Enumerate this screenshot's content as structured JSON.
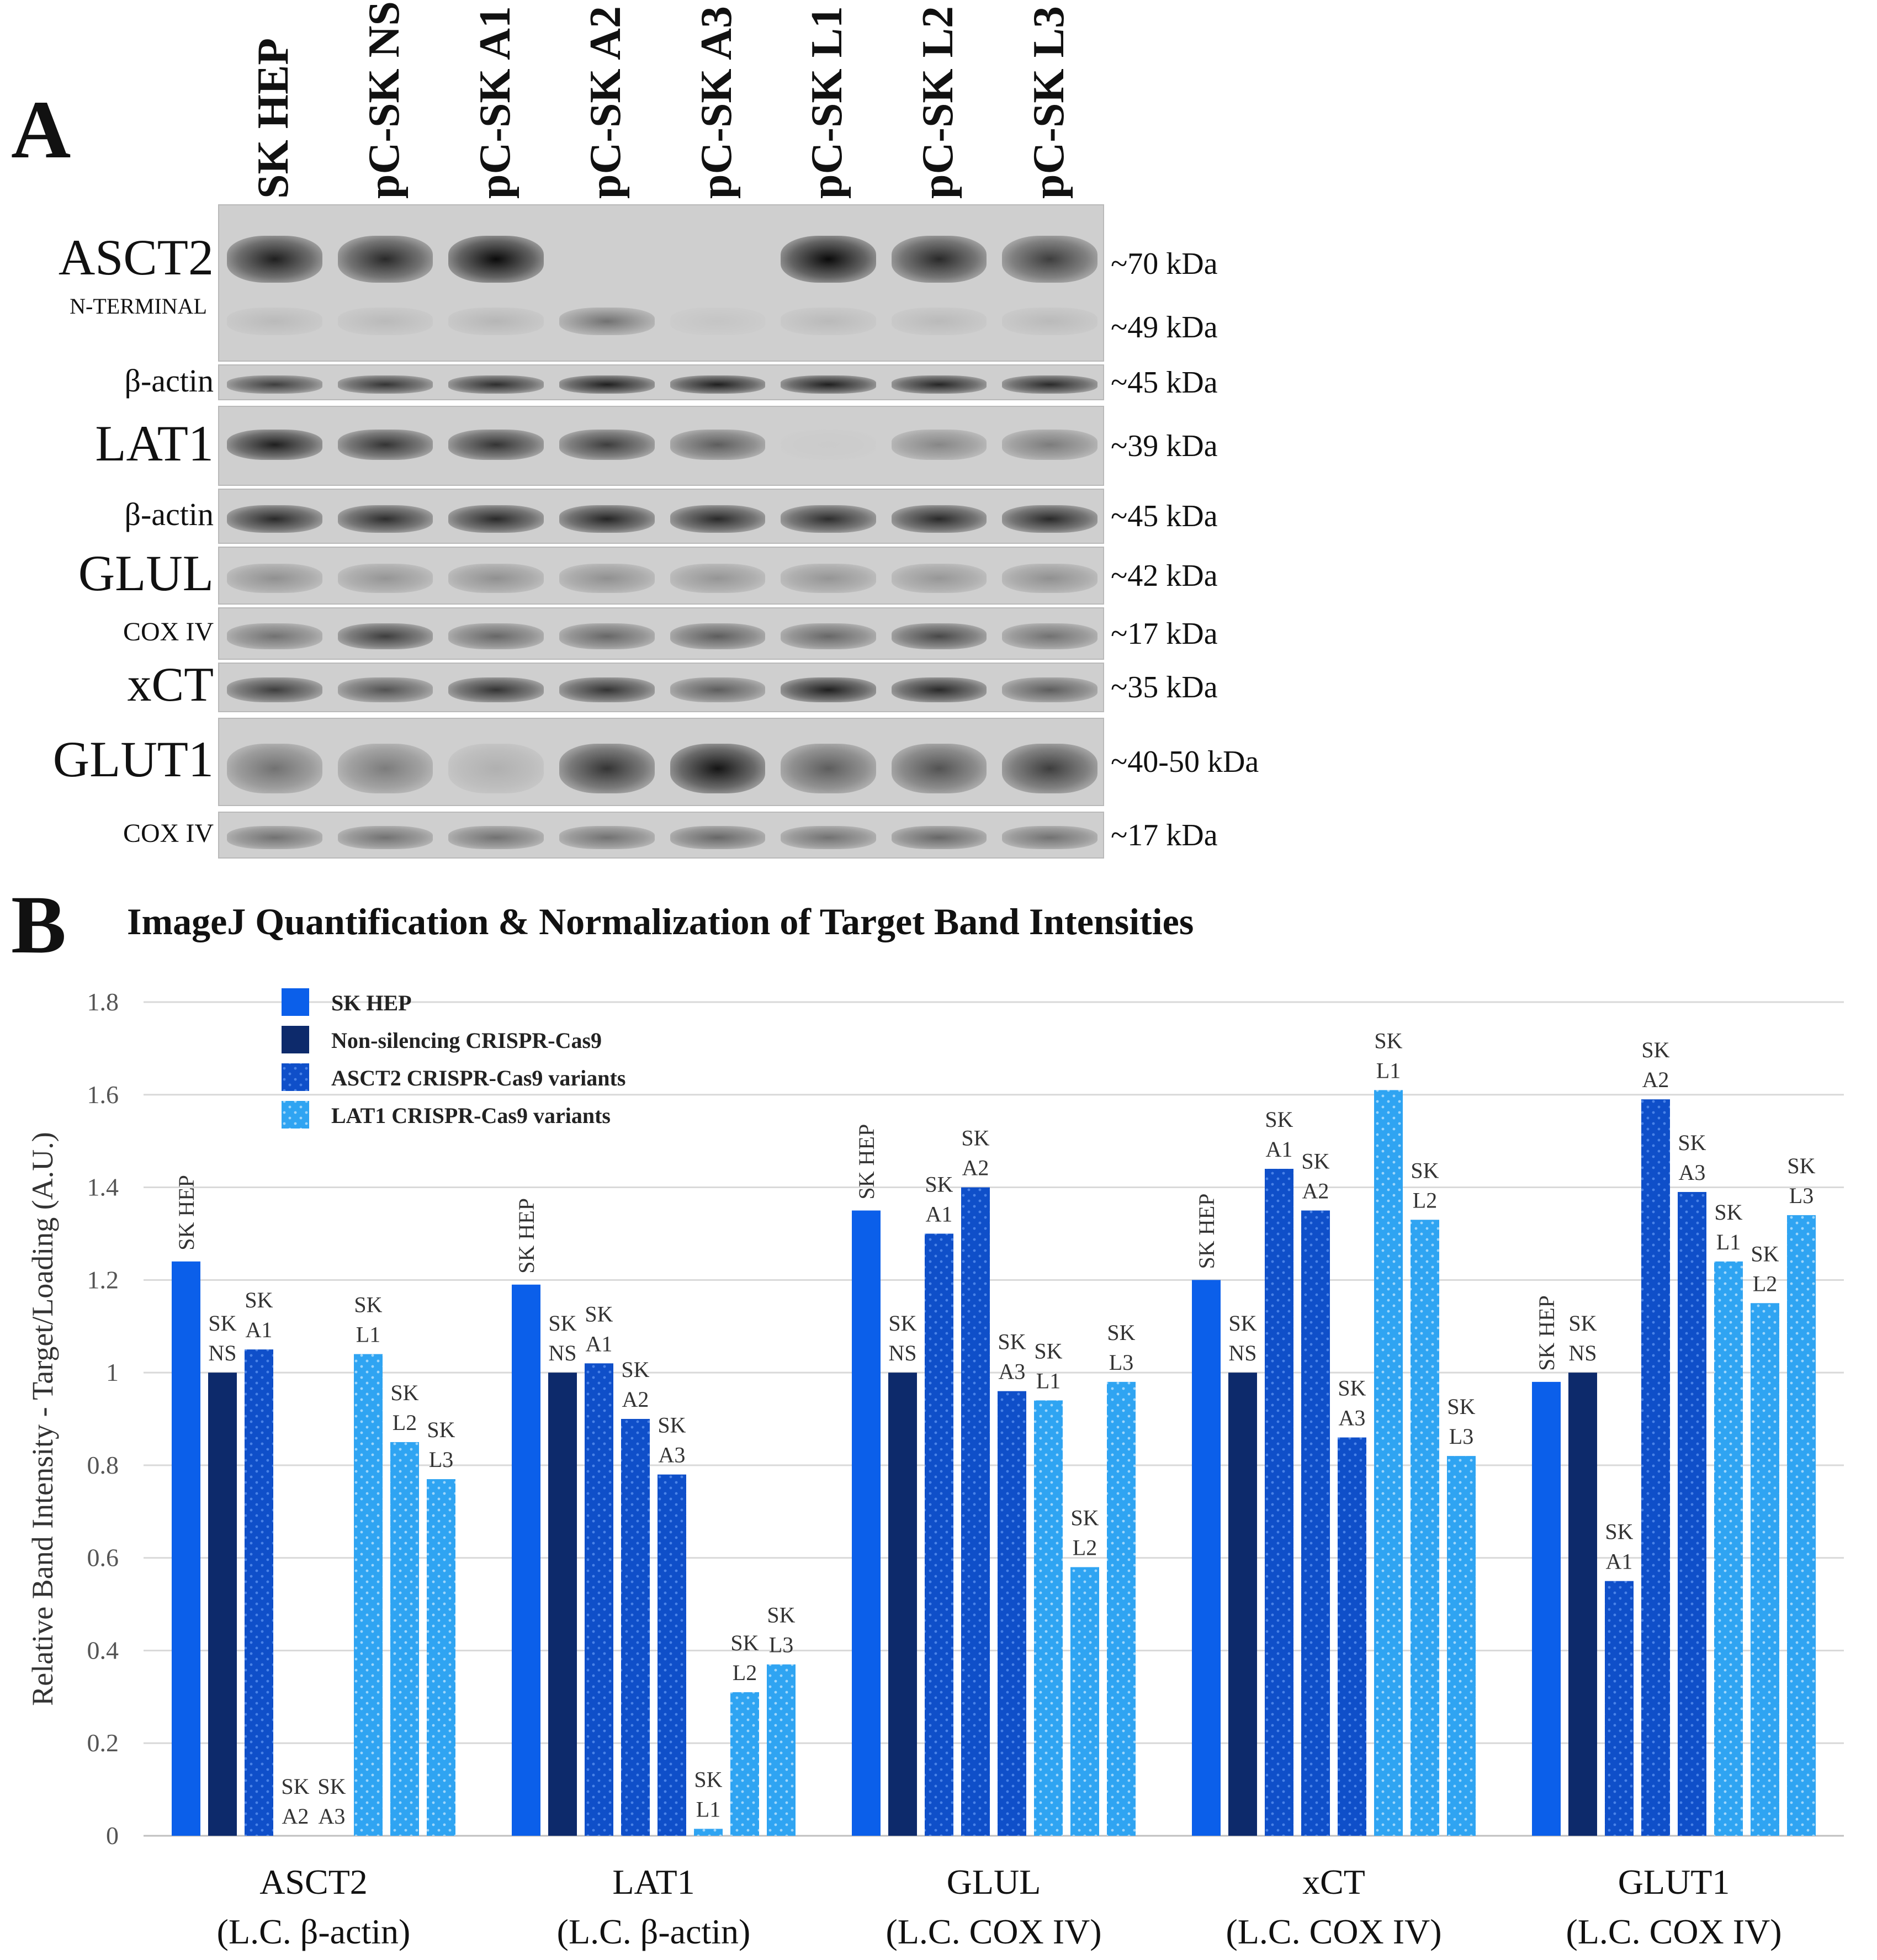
{
  "panel_a": {
    "letter": "A",
    "lanes": [
      "SK HEP",
      "pC-SK NS",
      "pC-SK A1",
      "pC-SK A2",
      "pC-SK A3",
      "pC-SK L1",
      "pC-SK L2",
      "pC-SK L3"
    ],
    "blots": [
      {
        "id": "asct2",
        "label": "ASCT2",
        "sublabel": "N-TERMINAL",
        "kda": [
          "~70 kDa",
          "~49 kDa"
        ],
        "band_intensity": [
          0.85,
          0.8,
          0.95,
          0,
          0,
          0.95,
          0.8,
          0.7
        ],
        "minor_band_intensity": [
          0.1,
          0.1,
          0.12,
          0.45,
          0.05,
          0.1,
          0.1,
          0.1
        ]
      },
      {
        "id": "bactin1",
        "label": "β-actin",
        "kda": [
          "~45 kDa"
        ],
        "band_intensity": [
          0.7,
          0.75,
          0.78,
          0.85,
          0.85,
          0.85,
          0.82,
          0.8
        ]
      },
      {
        "id": "lat1",
        "label": "LAT1",
        "kda": [
          "~39 kDa"
        ],
        "band_intensity": [
          0.85,
          0.75,
          0.75,
          0.7,
          0.55,
          0.02,
          0.35,
          0.4
        ]
      },
      {
        "id": "bactin2",
        "label": "β-actin",
        "kda": [
          "~45 kDa"
        ],
        "band_intensity": [
          0.8,
          0.78,
          0.8,
          0.82,
          0.8,
          0.78,
          0.8,
          0.8
        ]
      },
      {
        "id": "glul",
        "label": "GLUL",
        "kda": [
          "~42 kDa"
        ],
        "band_intensity": [
          0.3,
          0.28,
          0.3,
          0.3,
          0.28,
          0.28,
          0.27,
          0.3
        ]
      },
      {
        "id": "cox1",
        "label": "COX IV",
        "kda": [
          "~17 kDa"
        ],
        "band_intensity": [
          0.45,
          0.7,
          0.5,
          0.5,
          0.55,
          0.5,
          0.65,
          0.45
        ]
      },
      {
        "id": "xct",
        "label": "xCT",
        "kda": [
          "~35 kDa"
        ],
        "band_intensity": [
          0.7,
          0.6,
          0.75,
          0.75,
          0.55,
          0.85,
          0.8,
          0.55
        ]
      },
      {
        "id": "glut1",
        "label": "GLUT1",
        "kda": [
          "~40-50 kDa"
        ],
        "band_intensity": [
          0.45,
          0.4,
          0.15,
          0.75,
          0.9,
          0.55,
          0.6,
          0.7
        ]
      },
      {
        "id": "cox2",
        "label": "COX IV",
        "kda": [
          "~17 kDa"
        ],
        "band_intensity": [
          0.45,
          0.45,
          0.45,
          0.45,
          0.5,
          0.45,
          0.5,
          0.45
        ]
      }
    ]
  },
  "panel_b": {
    "letter": "B"
  },
  "colors": {
    "sk_hep": "#0b5fea",
    "ns": "#0d2a6b",
    "asct2_variants": "#0f4fc9",
    "lat1_variants": "#2fa4f2",
    "grid": "#d9d9d9",
    "axis_text": "#555555"
  },
  "chart_data": {
    "type": "bar",
    "title": "ImageJ Quantification & Normalization of Target Band Intensities",
    "ylabel": "Relative Band Intensity - Target/Loading (A.U.)",
    "ylim": [
      0,
      1.8
    ],
    "yticks": [
      "0",
      "0.2",
      "0.4",
      "0.6",
      "0.8",
      "1",
      "1.2",
      "1.4",
      "1.6",
      "1.8"
    ],
    "grid": true,
    "legend_position": "top-left",
    "legend": [
      {
        "label": "SK HEP",
        "color_key": "sk_hep"
      },
      {
        "label": "Non-silencing CRISPR-Cas9",
        "color_key": "ns"
      },
      {
        "label": "ASCT2 CRISPR-Cas9 variants",
        "color_key": "asct2_variants",
        "pattern": true
      },
      {
        "label": "LAT1 CRISPR-Cas9 variants",
        "color_key": "lat1_variants",
        "pattern": true
      }
    ],
    "bar_color_keys": [
      "sk_hep",
      "ns",
      "asct2_variants",
      "asct2_variants",
      "asct2_variants",
      "lat1_variants",
      "lat1_variants",
      "lat1_variants"
    ],
    "groups": [
      {
        "name": "ASCT2",
        "sub": "(L.C. β-actin)",
        "values": [
          1.24,
          1.0,
          1.05,
          0,
          0,
          1.04,
          0.85,
          0.77
        ],
        "bar_labels": [
          [
            "SK HEP"
          ],
          [
            "SK",
            "NS"
          ],
          [
            "SK",
            "A1"
          ],
          [
            "SK",
            "A2"
          ],
          [
            "SK",
            "A3"
          ],
          [
            "SK",
            "L1"
          ],
          [
            "SK",
            "L2"
          ],
          [
            "SK",
            "L3"
          ]
        ]
      },
      {
        "name": "LAT1",
        "sub": "(L.C. β-actin)",
        "values": [
          1.19,
          1.0,
          1.02,
          0.9,
          0.78,
          0.015,
          0.31,
          0.37
        ],
        "bar_labels": [
          [
            "SK HEP"
          ],
          [
            "SK",
            "NS"
          ],
          [
            "SK",
            "A1"
          ],
          [
            "SK",
            "A2"
          ],
          [
            "SK",
            "A3"
          ],
          [
            "SK",
            "L1"
          ],
          [
            "SK",
            "L2"
          ],
          [
            "SK",
            "L3"
          ]
        ]
      },
      {
        "name": "GLUL",
        "sub": "(L.C. COX IV)",
        "values": [
          1.35,
          1.0,
          1.3,
          1.4,
          0.96,
          0.94,
          0.58,
          0.98
        ],
        "bar_labels": [
          [
            "SK HEP"
          ],
          [
            "SK",
            "NS"
          ],
          [
            "SK",
            "A1"
          ],
          [
            "SK",
            "A2"
          ],
          [
            "SK",
            "A3"
          ],
          [
            "SK",
            "L1"
          ],
          [
            "SK",
            "L2"
          ],
          [
            "SK",
            "L3"
          ]
        ]
      },
      {
        "name": "xCT",
        "sub": "(L.C. COX IV)",
        "values": [
          1.2,
          1.0,
          1.44,
          1.35,
          0.86,
          1.61,
          1.33,
          0.82
        ],
        "bar_labels": [
          [
            "SK HEP"
          ],
          [
            "SK",
            "NS"
          ],
          [
            "SK",
            "A1"
          ],
          [
            "SK",
            "A2"
          ],
          [
            "SK",
            "A3"
          ],
          [
            "SK",
            "L1"
          ],
          [
            "SK",
            "L2"
          ],
          [
            "SK",
            "L3"
          ]
        ]
      },
      {
        "name": "GLUT1",
        "sub": "(L.C. COX IV)",
        "values": [
          0.98,
          1.0,
          0.55,
          1.59,
          1.39,
          1.24,
          1.15,
          1.34
        ],
        "bar_labels": [
          [
            "SK HEP"
          ],
          [
            "SK",
            "NS"
          ],
          [
            "SK",
            "A1"
          ],
          [
            "SK",
            "A2"
          ],
          [
            "SK",
            "A3"
          ],
          [
            "SK",
            "L1"
          ],
          [
            "SK",
            "L2"
          ],
          [
            "SK",
            "L3"
          ]
        ]
      }
    ]
  }
}
